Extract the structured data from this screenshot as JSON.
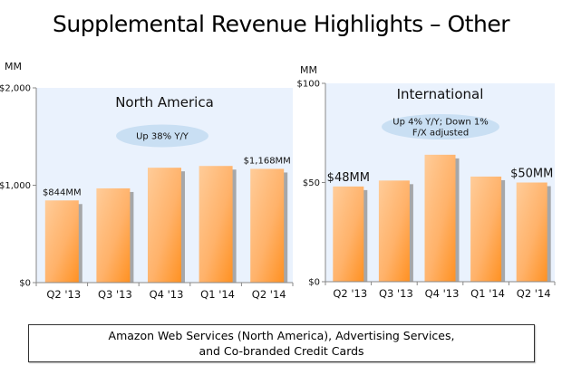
{
  "title": "Supplemental Revenue Highlights – Other",
  "footer": {
    "line1": "Amazon Web Services (North America), Advertising Services,",
    "line2": "and Co-branded Credit Cards"
  },
  "colors": {
    "plot_bg": "#eaf2fd",
    "bar_light": "#ffcc99",
    "bar_dark": "#ff9122",
    "oval": "#c9dff3",
    "axis": "#888888"
  },
  "chart_data": [
    {
      "type": "bar",
      "title": "North America",
      "unit_label": "MM",
      "categories": [
        "Q2 '13",
        "Q3 '13",
        "Q4 '13",
        "Q1 '14",
        "Q2 '14"
      ],
      "values": [
        844,
        968,
        1180,
        1198,
        1168
      ],
      "ylim": [
        0,
        2000
      ],
      "yticks": [
        0,
        1000,
        2000
      ],
      "ytick_labels": [
        "$0",
        "$1,000",
        "$2,000"
      ],
      "data_labels": [
        {
          "index": 0,
          "text": "$844MM"
        },
        {
          "index": 4,
          "text": "$1,168MM"
        }
      ],
      "callout": [
        "Up 38% Y/Y"
      ],
      "xlabel": "",
      "ylabel": "MM",
      "grid": false
    },
    {
      "type": "bar",
      "title": "International",
      "unit_label": "MM",
      "categories": [
        "Q2 '13",
        "Q3 '13",
        "Q4 '13",
        "Q1 '14",
        "Q2 '14"
      ],
      "values": [
        48,
        51,
        64,
        53,
        50
      ],
      "ylim": [
        0,
        100
      ],
      "yticks": [
        0,
        50,
        100
      ],
      "ytick_labels": [
        "$0",
        "$50",
        "$100"
      ],
      "data_labels": [
        {
          "index": 0,
          "text": "$48MM"
        },
        {
          "index": 4,
          "text": "$50MM"
        }
      ],
      "callout": [
        "Up 4% Y/Y; Down 1%",
        "F/X adjusted"
      ],
      "xlabel": "",
      "ylabel": "MM",
      "grid": false
    }
  ]
}
